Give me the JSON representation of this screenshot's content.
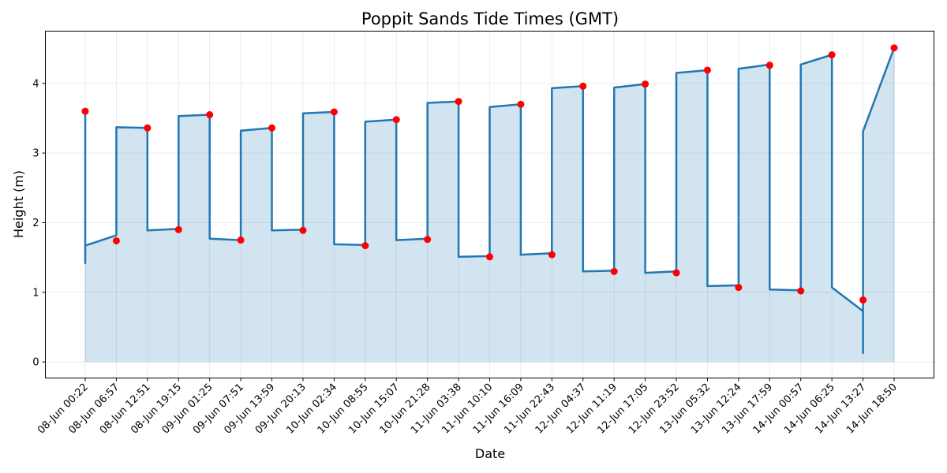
{
  "chart_data": {
    "type": "area",
    "title": "Poppit Sands Tide Times (GMT)",
    "xlabel": "Date",
    "ylabel": "Height (m)",
    "ylim": [
      -0.23,
      4.75
    ],
    "yticks": [
      0,
      1,
      2,
      3,
      4
    ],
    "grid": true,
    "colors": {
      "line": "#1f77b4",
      "fill": "#1f77b4",
      "marker": "#ff0000",
      "grid": "#e6e6e6"
    },
    "categories": [
      "08-Jun 00:22",
      "08-Jun 06:57",
      "08-Jun 12:51",
      "08-Jun 19:15",
      "09-Jun 01:25",
      "09-Jun 07:51",
      "09-Jun 13:59",
      "09-Jun 20:13",
      "10-Jun 02:34",
      "10-Jun 08:55",
      "10-Jun 15:07",
      "10-Jun 21:28",
      "11-Jun 03:38",
      "11-Jun 10:10",
      "11-Jun 16:09",
      "11-Jun 22:43",
      "12-Jun 04:37",
      "12-Jun 11:19",
      "12-Jun 17:05",
      "12-Jun 23:52",
      "13-Jun 05:32",
      "13-Jun 12:24",
      "13-Jun 17:59",
      "14-Jun 00:57",
      "14-Jun 06:25",
      "14-Jun 13:27",
      "14-Jun 18:50"
    ],
    "tide_points": [
      3.6,
      1.74,
      3.36,
      1.9,
      3.55,
      1.75,
      3.36,
      1.89,
      3.59,
      1.67,
      3.48,
      1.76,
      3.74,
      1.51,
      3.7,
      1.54,
      3.96,
      1.3,
      3.99,
      1.28,
      4.19,
      1.07,
      4.26,
      1.02,
      4.41,
      0.89,
      4.51
    ],
    "curve": [
      [
        0,
        3.6
      ],
      [
        0,
        1.42
      ],
      [
        0,
        1.67
      ],
      [
        1,
        1.82
      ],
      [
        1,
        3.37
      ],
      [
        2,
        3.36
      ],
      [
        2,
        1.89
      ],
      [
        3,
        1.91
      ],
      [
        3,
        3.53
      ],
      [
        4,
        3.55
      ],
      [
        4,
        1.77
      ],
      [
        5,
        1.75
      ],
      [
        5,
        3.32
      ],
      [
        6,
        3.36
      ],
      [
        6,
        1.89
      ],
      [
        7,
        1.9
      ],
      [
        7,
        3.57
      ],
      [
        8,
        3.59
      ],
      [
        8,
        1.69
      ],
      [
        9,
        1.68
      ],
      [
        9,
        3.45
      ],
      [
        10,
        3.48
      ],
      [
        10,
        1.75
      ],
      [
        11,
        1.77
      ],
      [
        11,
        3.72
      ],
      [
        12,
        3.74
      ],
      [
        12,
        1.51
      ],
      [
        13,
        1.52
      ],
      [
        13,
        3.66
      ],
      [
        14,
        3.7
      ],
      [
        14,
        1.54
      ],
      [
        15,
        1.56
      ],
      [
        15,
        3.93
      ],
      [
        16,
        3.96
      ],
      [
        16,
        1.3
      ],
      [
        17,
        1.31
      ],
      [
        17,
        3.94
      ],
      [
        18,
        3.99
      ],
      [
        18,
        1.28
      ],
      [
        19,
        1.3
      ],
      [
        19,
        4.15
      ],
      [
        20,
        4.19
      ],
      [
        20,
        1.09
      ],
      [
        21,
        1.1
      ],
      [
        21,
        4.21
      ],
      [
        22,
        4.27
      ],
      [
        22,
        1.04
      ],
      [
        23,
        1.03
      ],
      [
        23,
        4.27
      ],
      [
        24,
        4.41
      ],
      [
        24,
        1.07
      ],
      [
        25,
        0.73
      ],
      [
        25,
        0.13
      ],
      [
        25,
        3.31
      ],
      [
        26,
        4.51
      ]
    ]
  }
}
